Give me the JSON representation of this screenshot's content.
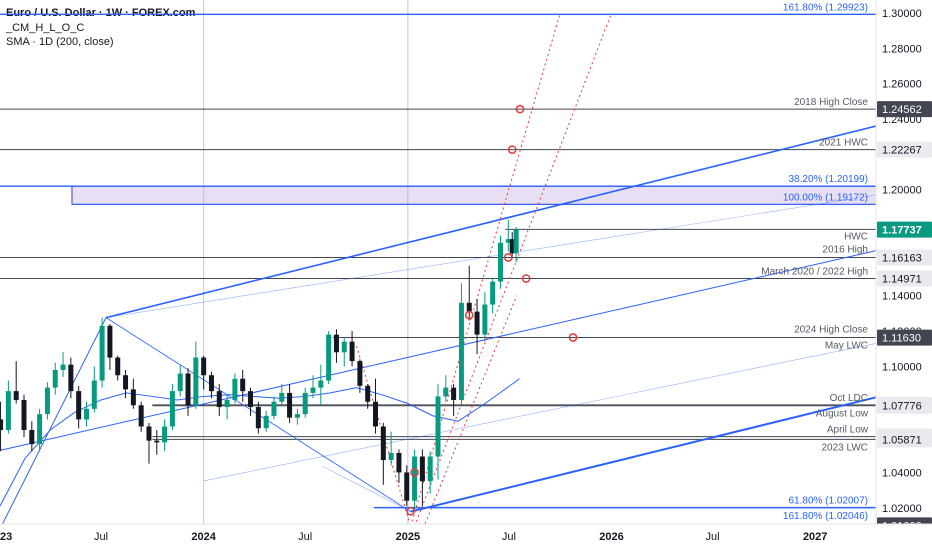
{
  "header": {
    "title": "Euro / U.S. Dollar · 1W · FOREX.com",
    "indicator1": "_CM_H_L_O_C",
    "indicator2": "SMA · 1D (200, close)"
  },
  "colors": {
    "up": "#089981",
    "down": "#131722",
    "trend": "#2962ff",
    "level": "#434651",
    "marker": "#e53935",
    "zone": "#b39ddb",
    "sma": "#2962ff",
    "current": "#089981"
  },
  "chart_data": {
    "type": "candlestick",
    "x_range": [
      "2023-01-01",
      "2027-04-20"
    ],
    "y_range": [
      1.0,
      1.3
    ],
    "x_ticks": [
      {
        "label": "2023",
        "date": "2023-01-01"
      },
      {
        "label": "Jul",
        "date": "2023-07-01"
      },
      {
        "label": "2024",
        "date": "2024-01-01"
      },
      {
        "label": "Jul",
        "date": "2024-07-01"
      },
      {
        "label": "2025",
        "date": "2025-01-01"
      },
      {
        "label": "Jul",
        "date": "2025-07-01"
      },
      {
        "label": "2026",
        "date": "2026-01-01"
      },
      {
        "label": "Jul",
        "date": "2026-07-01"
      },
      {
        "label": "2027",
        "date": "2027-01-01"
      }
    ],
    "y_ticks": [
      {
        "label": "1.30000",
        "value": 1.3
      },
      {
        "label": "1.28000",
        "value": 1.28
      },
      {
        "label": "1.26000",
        "value": 1.26
      },
      {
        "label": "1.24000",
        "value": 1.24
      },
      {
        "label": "1.20000",
        "value": 1.2
      },
      {
        "label": "1.14000",
        "value": 1.14
      },
      {
        "label": "1.12000",
        "value": 1.12
      },
      {
        "label": "1.10000",
        "value": 1.1
      },
      {
        "label": "1.04000",
        "value": 1.04
      },
      {
        "label": "1.02000",
        "value": 1.02
      }
    ],
    "price_badges": [
      {
        "label": "1.24562",
        "value": 1.24562,
        "style": "dark"
      },
      {
        "label": "1.22267",
        "value": 1.22267,
        "style": "light"
      },
      {
        "label": "1.17752",
        "value": 1.17752,
        "style": "light"
      },
      {
        "label": "1.17737",
        "value": 1.17737,
        "style": "current"
      },
      {
        "label": "1.16163",
        "value": 1.16163,
        "style": "light"
      },
      {
        "label": "1.14971",
        "value": 1.14971,
        "style": "light"
      },
      {
        "label": "1.11635",
        "value": 1.11635,
        "style": "light"
      },
      {
        "label": "1.11630",
        "value": 1.1163,
        "style": "dark"
      },
      {
        "label": "1.07824",
        "value": 1.07824,
        "style": "light"
      },
      {
        "label": "1.07776",
        "value": 1.07776,
        "style": "light"
      },
      {
        "label": "1.06024",
        "value": 1.06024,
        "style": "light"
      },
      {
        "label": "1.05871",
        "value": 1.05871,
        "style": "light"
      },
      {
        "label": "1.01000",
        "value": 1.01,
        "style": "dark"
      }
    ],
    "levels": [
      {
        "value": 1.29923,
        "label": "161.80% (1.29923)",
        "kind": "fib"
      },
      {
        "value": 1.24562,
        "label": "2018 High Close",
        "kind": "level"
      },
      {
        "value": 1.22267,
        "label": "2021 HWC",
        "kind": "level"
      },
      {
        "value": 1.20199,
        "label": "38.20% (1.20199)",
        "kind": "fib"
      },
      {
        "value": 1.19172,
        "label": "100.00% (1.19172)",
        "kind": "fib"
      },
      {
        "value": 1.17752,
        "label": "HWC",
        "kind": "level"
      },
      {
        "value": 1.16163,
        "label": "2016 High",
        "kind": "level"
      },
      {
        "value": 1.14971,
        "label": "March 2020 / 2022 High",
        "kind": "level"
      },
      {
        "value": 1.11635,
        "label": "2024 High Close",
        "kind": "level"
      },
      {
        "value": 1.1163,
        "label": "May LWC",
        "kind": "level"
      },
      {
        "value": 1.07824,
        "label": "Oct LDC",
        "kind": "level"
      },
      {
        "value": 1.07776,
        "label": "August Low",
        "kind": "level"
      },
      {
        "value": 1.06024,
        "label": "April Low",
        "kind": "level"
      },
      {
        "value": 1.05871,
        "label": "2023 LWC",
        "kind": "level"
      },
      {
        "value": 1.02007,
        "label": "61.80% (1.02007)",
        "kind": "fib"
      },
      {
        "value": 1.02046,
        "label": "161.80% (1.02046)",
        "kind": "fib"
      }
    ],
    "zone": {
      "from": 1.19172,
      "to": 1.20199,
      "start": "2023-05-10"
    },
    "trendlines": [
      {
        "from": [
          "2023-07-10",
          1.1276
        ],
        "to": [
          "2027-04-20",
          1.236
        ],
        "width": 1.6
      },
      {
        "from": [
          "2023-01-01",
          1.0525
        ],
        "to": [
          "2027-04-20",
          1.1655
        ],
        "width": 1.0
      },
      {
        "from": [
          "2023-07-10",
          1.1276
        ],
        "to": [
          "2027-04-20",
          1.197
        ],
        "width": 0.6
      },
      {
        "from": [
          "2023-01-01",
          1.008
        ],
        "to": [
          "2023-07-10",
          1.1276
        ],
        "width": 1.0
      },
      {
        "from": [
          "2023-07-10",
          1.1276
        ],
        "to": [
          "2025-01-06",
          1.0178
        ],
        "width": 0.8
      },
      {
        "from": [
          "2025-01-06",
          1.0178
        ],
        "to": [
          "2027-04-20",
          1.0825
        ],
        "width": 2.0
      },
      {
        "from": [
          "2024-01-01",
          1.0352
        ],
        "to": [
          "2027-04-20",
          1.113
        ],
        "width": 0.6
      },
      {
        "from": [
          "2025-01-06",
          1.0178
        ],
        "to": [
          "2024-08-01",
          1.0435
        ],
        "width": 0.6
      }
    ],
    "channel_lines": [
      {
        "from": [
          "2024-10-01",
          1.1115
        ],
        "to": [
          "2025-01-06",
          1.0095
        ]
      },
      {
        "from": [
          "2025-01-06",
          1.0095
        ],
        "to": [
          "2025-10-01",
          1.3
        ]
      },
      {
        "from": [
          "2025-01-13",
          1.0095
        ],
        "to": [
          "2026-01-01",
          1.3
        ]
      },
      {
        "from": [
          "2025-02-01",
          1.011
        ],
        "to": [
          "2025-07-15",
          1.14
        ]
      }
    ],
    "markers": [
      {
        "date": "2025-07-21",
        "value": 1.24562
      },
      {
        "date": "2025-07-07",
        "value": 1.22267
      },
      {
        "date": "2025-06-30",
        "value": 1.16163
      },
      {
        "date": "2025-08-01",
        "value": 1.14971
      },
      {
        "date": "2025-10-24",
        "value": 1.11635
      },
      {
        "date": "2025-04-21",
        "value": 1.129
      },
      {
        "date": "2025-01-13",
        "value": 1.04
      },
      {
        "date": "2025-01-06",
        "value": 1.018
      }
    ],
    "sma": [
      [
        "2023-01-01",
        1.021
      ],
      [
        "2023-02-15",
        1.048
      ],
      [
        "2023-04-01",
        1.064
      ],
      [
        "2023-05-15",
        1.074
      ],
      [
        "2023-07-01",
        1.081
      ],
      [
        "2023-08-15",
        1.085
      ],
      [
        "2023-10-01",
        1.083
      ],
      [
        "2023-11-15",
        1.081
      ],
      [
        "2024-01-01",
        1.083
      ],
      [
        "2024-02-15",
        1.084
      ],
      [
        "2024-04-01",
        1.083
      ],
      [
        "2024-05-15",
        1.082
      ],
      [
        "2024-07-01",
        1.083
      ],
      [
        "2024-08-15",
        1.085
      ],
      [
        "2024-10-01",
        1.088
      ],
      [
        "2024-11-15",
        1.084
      ],
      [
        "2025-01-01",
        1.079
      ],
      [
        "2025-02-15",
        1.072
      ],
      [
        "2025-04-01",
        1.069
      ],
      [
        "2025-05-15",
        1.078
      ],
      [
        "2025-06-15",
        1.085
      ],
      [
        "2025-07-20",
        1.093
      ]
    ],
    "candles": [
      [
        "2023-01-02",
        1.07,
        1.08,
        1.052,
        1.064
      ],
      [
        "2023-01-16",
        1.064,
        1.092,
        1.062,
        1.086
      ],
      [
        "2023-01-30",
        1.086,
        1.103,
        1.079,
        1.081
      ],
      [
        "2023-02-13",
        1.081,
        1.084,
        1.06,
        1.064
      ],
      [
        "2023-02-27",
        1.064,
        1.069,
        1.052,
        1.056
      ],
      [
        "2023-03-13",
        1.056,
        1.076,
        1.052,
        1.073
      ],
      [
        "2023-03-27",
        1.073,
        1.091,
        1.07,
        1.088
      ],
      [
        "2023-04-10",
        1.088,
        1.102,
        1.084,
        1.098
      ],
      [
        "2023-04-24",
        1.098,
        1.108,
        1.094,
        1.101
      ],
      [
        "2023-05-08",
        1.101,
        1.105,
        1.082,
        1.086
      ],
      [
        "2023-05-22",
        1.086,
        1.089,
        1.065,
        1.07
      ],
      [
        "2023-06-05",
        1.07,
        1.08,
        1.066,
        1.076
      ],
      [
        "2023-06-19",
        1.076,
        1.1,
        1.074,
        1.092
      ],
      [
        "2023-07-03",
        1.092,
        1.1276,
        1.088,
        1.123
      ],
      [
        "2023-07-17",
        1.123,
        1.124,
        1.098,
        1.105
      ],
      [
        "2023-07-31",
        1.105,
        1.106,
        1.092,
        1.095
      ],
      [
        "2023-08-14",
        1.095,
        1.098,
        1.082,
        1.087
      ],
      [
        "2023-08-28",
        1.087,
        1.093,
        1.076,
        1.078
      ],
      [
        "2023-09-11",
        1.078,
        1.08,
        1.063,
        1.066
      ],
      [
        "2023-09-25",
        1.066,
        1.068,
        1.045,
        1.058
      ],
      [
        "2023-10-09",
        1.058,
        1.064,
        1.05,
        1.057
      ],
      [
        "2023-10-23",
        1.057,
        1.07,
        1.052,
        1.066
      ],
      [
        "2023-11-06",
        1.066,
        1.09,
        1.064,
        1.086
      ],
      [
        "2023-11-20",
        1.086,
        1.101,
        1.083,
        1.096
      ],
      [
        "2023-12-04",
        1.096,
        1.099,
        1.072,
        1.078
      ],
      [
        "2023-12-18",
        1.078,
        1.114,
        1.076,
        1.105
      ],
      [
        "2024-01-01",
        1.105,
        1.106,
        1.087,
        1.095
      ],
      [
        "2024-01-15",
        1.095,
        1.097,
        1.082,
        1.086
      ],
      [
        "2024-01-29",
        1.086,
        1.09,
        1.072,
        1.077
      ],
      [
        "2024-02-12",
        1.077,
        1.084,
        1.07,
        1.081
      ],
      [
        "2024-02-26",
        1.081,
        1.096,
        1.079,
        1.093
      ],
      [
        "2024-03-11",
        1.093,
        1.098,
        1.08,
        1.086
      ],
      [
        "2024-03-25",
        1.086,
        1.088,
        1.072,
        1.077
      ],
      [
        "2024-04-08",
        1.077,
        1.08,
        1.062,
        1.065
      ],
      [
        "2024-04-22",
        1.065,
        1.075,
        1.063,
        1.072
      ],
      [
        "2024-05-06",
        1.072,
        1.083,
        1.07,
        1.08
      ],
      [
        "2024-05-20",
        1.08,
        1.09,
        1.078,
        1.085
      ],
      [
        "2024-06-03",
        1.085,
        1.09,
        1.068,
        1.071
      ],
      [
        "2024-06-17",
        1.071,
        1.076,
        1.067,
        1.073
      ],
      [
        "2024-07-01",
        1.073,
        1.088,
        1.071,
        1.085
      ],
      [
        "2024-07-15",
        1.085,
        1.095,
        1.082,
        1.088
      ],
      [
        "2024-07-29",
        1.088,
        1.101,
        1.078,
        1.092
      ],
      [
        "2024-08-12",
        1.092,
        1.12,
        1.09,
        1.118
      ],
      [
        "2024-08-26",
        1.118,
        1.121,
        1.102,
        1.108
      ],
      [
        "2024-09-09",
        1.108,
        1.116,
        1.1,
        1.114
      ],
      [
        "2024-09-23",
        1.114,
        1.12,
        1.1,
        1.103
      ],
      [
        "2024-10-07",
        1.103,
        1.104,
        1.085,
        1.089
      ],
      [
        "2024-10-21",
        1.089,
        1.09,
        1.076,
        1.08
      ],
      [
        "2024-11-04",
        1.08,
        1.093,
        1.062,
        1.066
      ],
      [
        "2024-11-18",
        1.066,
        1.068,
        1.033,
        1.047
      ],
      [
        "2024-12-02",
        1.047,
        1.063,
        1.044,
        1.051
      ],
      [
        "2024-12-16",
        1.051,
        1.053,
        1.034,
        1.04
      ],
      [
        "2024-12-30",
        1.04,
        1.044,
        1.021,
        1.024
      ],
      [
        "2025-01-13",
        1.024,
        1.053,
        1.0178,
        1.049
      ],
      [
        "2025-01-27",
        1.049,
        1.053,
        1.021,
        1.035
      ],
      [
        "2025-02-10",
        1.035,
        1.052,
        1.028,
        1.049
      ],
      [
        "2025-02-24",
        1.049,
        1.09,
        1.036,
        1.083
      ],
      [
        "2025-03-10",
        1.083,
        1.095,
        1.08,
        1.088
      ],
      [
        "2025-03-24",
        1.088,
        1.09,
        1.072,
        1.081
      ],
      [
        "2025-04-07",
        1.081,
        1.147,
        1.078,
        1.136
      ],
      [
        "2025-04-21",
        1.136,
        1.157,
        1.126,
        1.131
      ],
      [
        "2025-05-05",
        1.131,
        1.138,
        1.107,
        1.118
      ],
      [
        "2025-05-19",
        1.118,
        1.142,
        1.114,
        1.135
      ],
      [
        "2025-06-02",
        1.135,
        1.15,
        1.13,
        1.148
      ],
      [
        "2025-06-16",
        1.148,
        1.174,
        1.144,
        1.17
      ],
      [
        "2025-06-30",
        1.17,
        1.183,
        1.165,
        1.172
      ],
      [
        "2025-07-07",
        1.172,
        1.176,
        1.161,
        1.164
      ],
      [
        "2025-07-14",
        1.164,
        1.179,
        1.159,
        1.1774
      ]
    ]
  }
}
